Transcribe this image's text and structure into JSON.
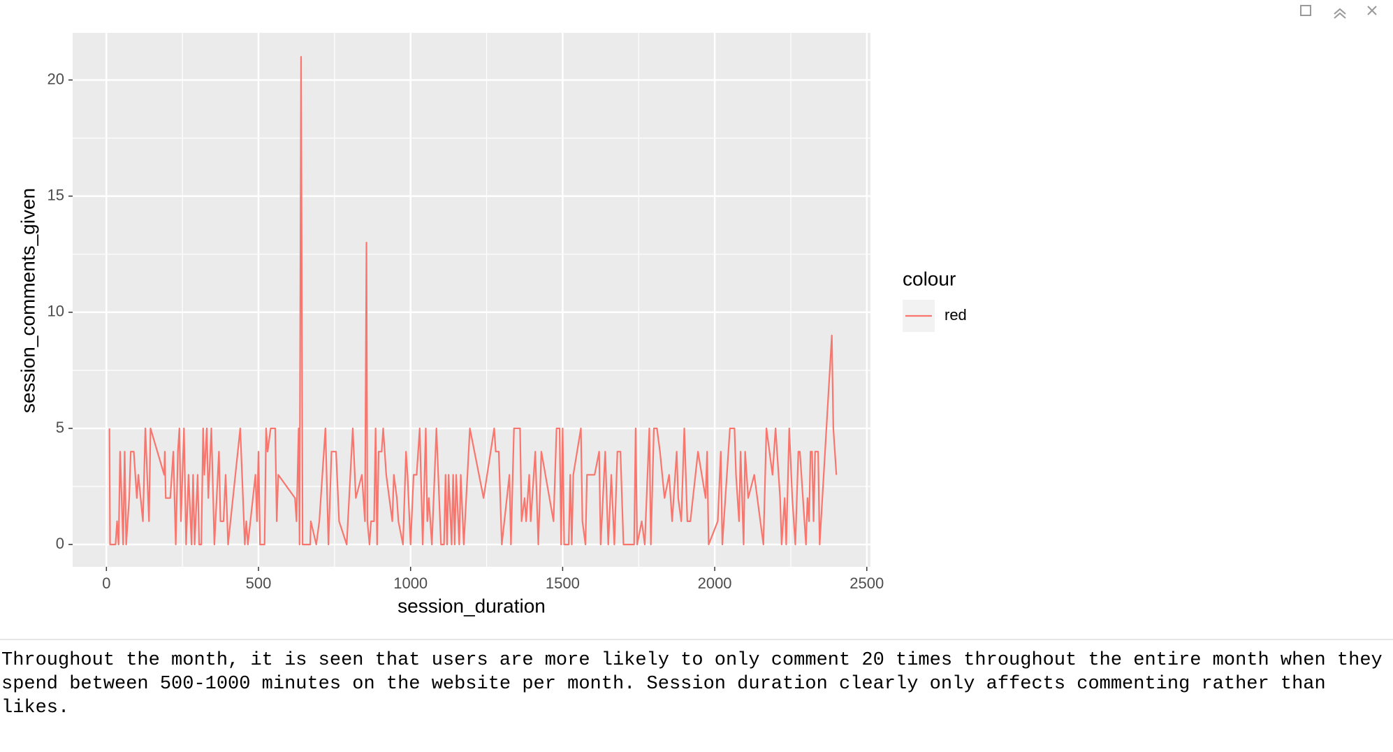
{
  "chart_data": {
    "type": "line",
    "xlabel": "session_duration",
    "ylabel": "session_comments_given",
    "legend_title": "colour",
    "xlim": [
      -111,
      2512
    ],
    "ylim": [
      -0.96,
      22.03
    ],
    "xticks": [
      0,
      500,
      1000,
      1500,
      2000,
      2500
    ],
    "yticks": [
      0,
      5,
      10,
      15,
      20
    ],
    "grid": true,
    "legend": "right",
    "x": [
      10,
      12,
      30,
      35,
      40,
      45,
      55,
      60,
      65,
      75,
      80,
      90,
      100,
      105,
      120,
      128,
      140,
      145,
      190,
      192,
      195,
      210,
      220,
      228,
      235,
      240,
      245,
      255,
      262,
      270,
      280,
      285,
      290,
      300,
      305,
      312,
      318,
      322,
      330,
      335,
      345,
      355,
      370,
      375,
      385,
      392,
      400,
      440,
      455,
      460,
      465,
      490,
      495,
      500,
      505,
      520,
      525,
      530,
      540,
      555,
      560,
      565,
      620,
      625,
      632,
      635,
      640,
      645,
      670,
      672,
      690,
      700,
      720,
      730,
      740,
      755,
      765,
      790,
      810,
      820,
      840,
      850,
      855,
      858,
      865,
      870,
      880,
      885,
      890,
      895,
      905,
      910,
      920,
      940,
      945,
      955,
      960,
      975,
      985,
      990,
      1000,
      1010,
      1020,
      1030,
      1040,
      1050,
      1055,
      1060,
      1070,
      1085,
      1100,
      1110,
      1115,
      1120,
      1125,
      1135,
      1140,
      1145,
      1150,
      1160,
      1165,
      1175,
      1195,
      1240,
      1275,
      1280,
      1290,
      1300,
      1325,
      1330,
      1340,
      1360,
      1365,
      1375,
      1380,
      1390,
      1395,
      1410,
      1420,
      1430,
      1470,
      1480,
      1490,
      1495,
      1500,
      1505,
      1520,
      1525,
      1530,
      1535,
      1560,
      1565,
      1575,
      1580,
      1600,
      1605,
      1620,
      1625,
      1640,
      1650,
      1660,
      1670,
      1680,
      1690,
      1700,
      1735,
      1740,
      1745,
      1760,
      1770,
      1785,
      1790,
      1800,
      1810,
      1820,
      1835,
      1850,
      1860,
      1875,
      1880,
      1890,
      1900,
      1910,
      1920,
      1945,
      1970,
      1975,
      1980,
      2010,
      2020,
      2025,
      2035,
      2050,
      2065,
      2070,
      2080,
      2085,
      2095,
      2100,
      2110,
      2130,
      2140,
      2160,
      2170,
      2190,
      2200,
      2215,
      2220,
      2230,
      2235,
      2245,
      2255,
      2260,
      2265,
      2275,
      2280,
      2290,
      2300,
      2305,
      2310,
      2315,
      2320,
      2325,
      2330,
      2340,
      2345,
      2385,
      2390,
      2395,
      2400
    ],
    "series": [
      {
        "name": "red",
        "color": "#F8766D",
        "values": [
          5,
          0,
          0,
          1,
          0,
          4,
          0,
          4,
          0,
          2,
          4,
          4,
          2,
          3,
          1,
          5,
          1,
          5,
          3,
          4,
          2,
          2,
          4,
          0,
          4,
          5,
          1,
          5,
          0,
          3,
          0,
          3,
          0,
          3,
          0,
          0,
          5,
          3,
          5,
          2,
          5,
          0,
          4,
          1,
          1,
          3,
          0,
          5,
          0,
          1,
          0,
          3,
          1,
          4,
          0,
          0,
          5,
          4,
          5,
          5,
          1,
          3,
          2,
          1,
          5,
          0,
          21,
          0,
          0,
          1,
          0,
          1,
          5,
          0,
          4,
          4,
          1,
          0,
          5,
          2,
          3,
          1,
          13,
          1,
          0,
          1,
          1,
          5,
          0,
          4,
          4,
          5,
          3,
          1,
          3,
          2,
          1,
          0,
          4,
          3,
          0,
          3,
          3,
          5,
          0,
          5,
          1,
          2,
          0,
          5,
          0,
          0,
          3,
          0,
          3,
          0,
          3,
          0,
          3,
          0,
          3,
          0,
          5,
          2,
          5,
          4,
          4,
          0,
          3,
          0,
          5,
          5,
          1,
          2,
          1,
          3,
          1,
          4,
          0,
          4,
          1,
          5,
          5,
          0,
          5,
          0,
          0,
          3,
          0,
          3,
          5,
          1,
          0,
          3,
          3,
          3,
          4,
          0,
          4,
          0,
          3,
          0,
          4,
          4,
          0,
          0,
          5,
          0,
          1,
          0,
          5,
          0,
          5,
          5,
          4,
          2,
          3,
          1,
          4,
          2,
          1,
          5,
          1,
          1,
          4,
          2,
          4,
          0,
          1,
          4,
          0,
          2,
          5,
          5,
          3,
          1,
          4,
          0,
          4,
          2,
          3,
          2,
          0,
          5,
          3,
          5,
          2,
          0,
          2,
          0,
          5,
          2,
          1,
          0,
          4,
          4,
          2,
          0,
          2,
          1,
          4,
          4,
          1,
          4,
          4,
          0,
          9,
          5,
          4,
          3
        ]
      }
    ]
  },
  "caption": "Throughout the month, it is seen that users are more likely to only comment 20 times throughout the entire month when they spend between 500-1000 minutes on the website per month. Session duration clearly only affects commenting rather than likes."
}
